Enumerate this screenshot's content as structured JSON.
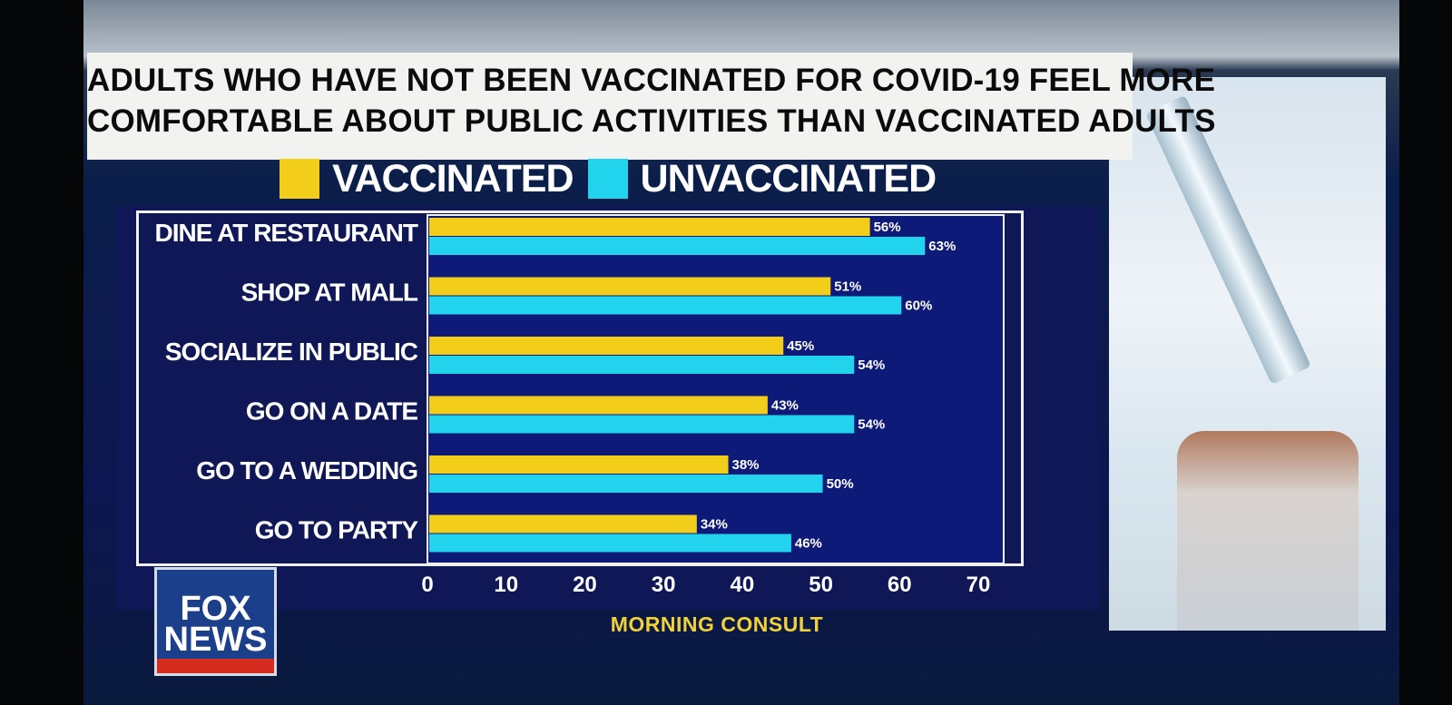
{
  "chart_data": {
    "type": "bar",
    "orientation": "horizontal",
    "title": "ADULTS WHO HAVE NOT BEEN VACCINATED FOR COVID-19 FEEL MORE COMFORTABLE ABOUT PUBLIC ACTIVITIES THAN VACCINATED ADULTS",
    "title_lines": [
      "ADULTS WHO HAVE NOT BEEN VACCINATED FOR COVID-19 FEEL MORE",
      "COMFORTABLE ABOUT PUBLIC ACTIVITIES THAN VACCINATED ADULTS"
    ],
    "categories": [
      "DINE AT RESTAURANT",
      "SHOP AT MALL",
      "SOCIALIZE IN PUBLIC",
      "GO ON A DATE",
      "GO TO A WEDDING",
      "GO TO PARTY"
    ],
    "series": [
      {
        "name": "VACCINATED",
        "color": "#f2cd1a",
        "values": [
          56,
          51,
          45,
          43,
          38,
          34
        ],
        "labels": [
          "56%",
          "51%",
          "45%",
          "43%",
          "38%",
          "34%"
        ]
      },
      {
        "name": "UNVACCINATED",
        "color": "#22d3ee",
        "values": [
          63,
          60,
          54,
          54,
          50,
          46
        ],
        "labels": [
          "63%",
          "60%",
          "54%",
          "54%",
          "50%",
          "46%"
        ]
      }
    ],
    "xlim": [
      0,
      70
    ],
    "x_ticks": [
      "0",
      "10",
      "20",
      "30",
      "40",
      "50",
      "60",
      "70"
    ],
    "legend_position": "top",
    "grid": false
  },
  "source": "MORNING CONSULT",
  "logo_text": [
    "FOX",
    "NEWS"
  ],
  "colors": {
    "panel": "#0f1756",
    "title_bg": "#f2f2f0",
    "source_text": "#f0d13a"
  }
}
